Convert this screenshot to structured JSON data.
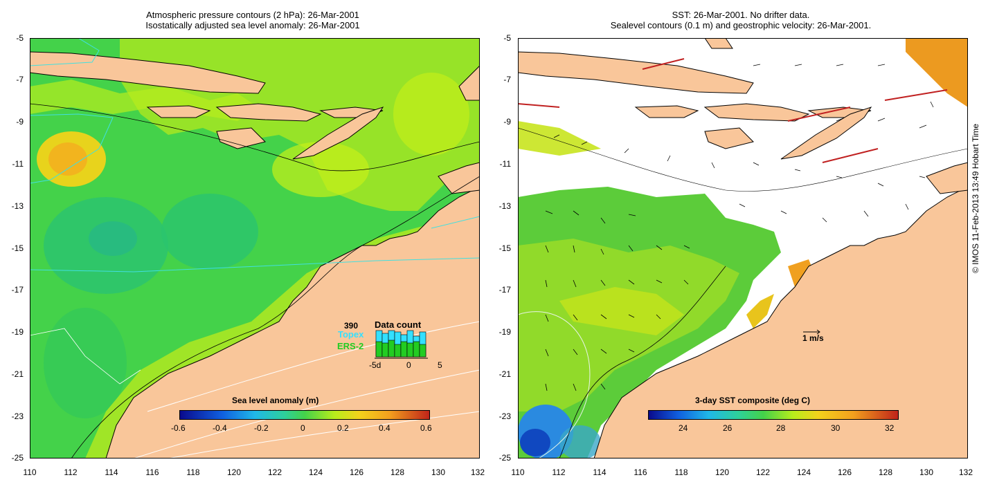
{
  "left_panel": {
    "title_line1": "Atmospheric pressure contours (2 hPa): 26-Mar-2001",
    "title_line2": "Isostatically adjusted sea level anomaly: 26-Mar-2001",
    "colorbar": {
      "title": "Sea level anomaly (m)",
      "ticks": [
        "-0.6",
        "-0.4",
        "-0.2",
        "0",
        "0.2",
        "0.4",
        "0.6"
      ]
    },
    "data_count": {
      "title": "Data count",
      "max_label": "390",
      "series": [
        {
          "name": "Topex",
          "color": "#33e0ff"
        },
        {
          "name": "ERS-2",
          "color": "#22cc22"
        }
      ],
      "x_ticks": [
        "-5d",
        "0",
        "5"
      ]
    }
  },
  "right_panel": {
    "title_line1": "SST: 26-Mar-2001. No drifter data.",
    "title_line2": "Sealevel contours (0.1 m) and geostrophic velocity: 26-Mar-2001.",
    "colorbar": {
      "title": "3-day SST composite (deg C)",
      "ticks": [
        "24",
        "26",
        "28",
        "30",
        "32"
      ]
    },
    "scale_label": "1 m/s"
  },
  "axes": {
    "y_ticks": [
      "-5",
      "-7",
      "-9",
      "-11",
      "-13",
      "-15",
      "-17",
      "-19",
      "-21",
      "-23",
      "-25"
    ],
    "x_ticks": [
      "110",
      "112",
      "114",
      "116",
      "118",
      "120",
      "122",
      "124",
      "126",
      "128",
      "130",
      "132"
    ]
  },
  "credit": "© IMOS 11-Feb-2013 13:49 Hobart Time",
  "colors": {
    "land": "#f9c69a",
    "sea_mid": "#44d24a",
    "sea_low": "#2bc46e",
    "sea_high": "#c2ee1a",
    "orange_high": "#f2b41e"
  }
}
